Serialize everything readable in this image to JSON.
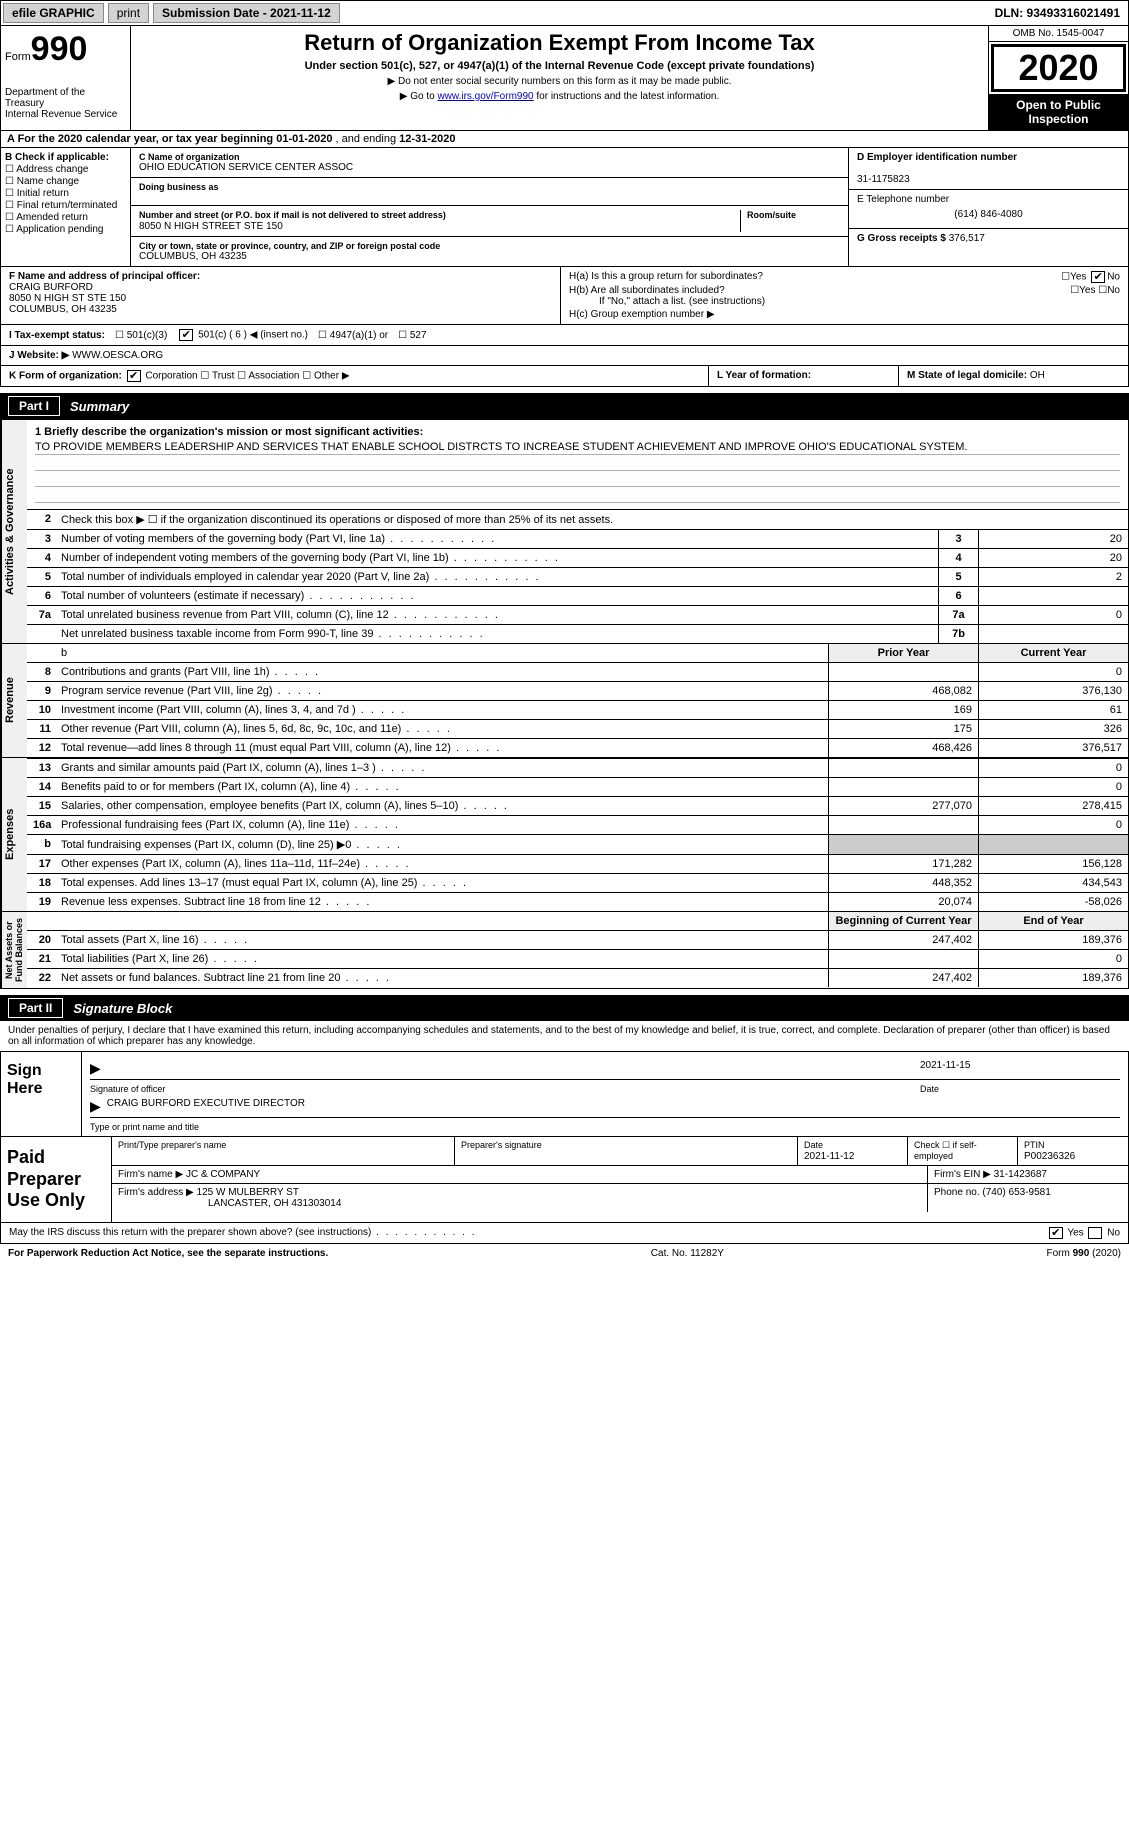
{
  "topbar": {
    "efile_label": "efile GRAPHIC",
    "print_btn": "print",
    "submission_label": "Submission Date - 2021-11-12",
    "dln": "DLN: 93493316021491"
  },
  "header": {
    "form_prefix": "Form",
    "form_number": "990",
    "dept": "Department of the Treasury\nInternal Revenue Service",
    "title": "Return of Organization Exempt From Income Tax",
    "subtitle": "Under section 501(c), 527, or 4947(a)(1) of the Internal Revenue Code (except private foundations)",
    "note1": "▶ Do not enter social security numbers on this form as it may be made public.",
    "note2_prefix": "▶ Go to ",
    "note2_link": "www.irs.gov/Form990",
    "note2_suffix": " for instructions and the latest information.",
    "omb": "OMB No. 1545-0047",
    "tax_year": "2020",
    "inspection": "Open to Public\nInspection"
  },
  "period": {
    "prefix": "A For the 2020 calendar year, or tax year beginning ",
    "begin": "01-01-2020",
    "mid": " , and ending ",
    "end": "12-31-2020"
  },
  "section_b": {
    "title": "B Check if applicable:",
    "opts": [
      "Address change",
      "Name change",
      "Initial return",
      "Final return/terminated",
      "Amended return",
      "Application pending"
    ]
  },
  "section_c": {
    "name_label": "C Name of organization",
    "name": "OHIO EDUCATION SERVICE CENTER ASSOC",
    "dba_label": "Doing business as",
    "dba": "",
    "street_label": "Number and street (or P.O. box if mail is not delivered to street address)",
    "room_label": "Room/suite",
    "street": "8050 N HIGH STREET STE 150",
    "city_label": "City or town, state or province, country, and ZIP or foreign postal code",
    "city": "COLUMBUS, OH  43235"
  },
  "section_d": {
    "label": "D Employer identification number",
    "value": "31-1175823"
  },
  "section_e": {
    "label": "E Telephone number",
    "value": "(614) 846-4080"
  },
  "section_g": {
    "label": "G Gross receipts $",
    "value": "376,517"
  },
  "section_f": {
    "label": "F Name and address of principal officer:",
    "name": "CRAIG BURFORD",
    "addr1": "8050 N HIGH ST STE 150",
    "addr2": "COLUMBUS, OH  43235"
  },
  "section_h": {
    "ha_label": "H(a)  Is this a group return for subordinates?",
    "hb_label": "H(b)  Are all subordinates included?",
    "hb_note": "If \"No,\" attach a list. (see instructions)",
    "hc_label": "H(c)  Group exemption number ▶",
    "ha_no_checked": true
  },
  "status": {
    "label": "I   Tax-exempt status:",
    "c6_insert": "501(c) ( 6 ) ◀ (insert no.)",
    "c3": "501(c)(3)",
    "a4947": "4947(a)(1) or",
    "s527": "527"
  },
  "website": {
    "label": "J   Website: ▶",
    "value": "WWW.OESCA.ORG"
  },
  "korg": {
    "label": "K Form of organization:",
    "opts": [
      "Corporation",
      "Trust",
      "Association",
      "Other ▶"
    ],
    "year_label": "L Year of formation:",
    "year": "",
    "state_label": "M State of legal domicile:",
    "state": "OH"
  },
  "part1": {
    "part": "Part I",
    "title": "Summary",
    "mission_label": "1  Briefly describe the organization's mission or most significant activities:",
    "mission": "TO PROVIDE MEMBERS LEADERSHIP AND SERVICES THAT ENABLE SCHOOL DISTRCTS TO INCREASE STUDENT ACHIEVEMENT AND IMPROVE OHIO'S EDUCATIONAL SYSTEM.",
    "line2": "Check this box ▶ ☐  if the organization discontinued its operations or disposed of more than 25% of its net assets.",
    "governance_lines": [
      {
        "num": "3",
        "label": "Number of voting members of the governing body (Part VI, line 1a)",
        "cell": "3",
        "val": "20"
      },
      {
        "num": "4",
        "label": "Number of independent voting members of the governing body (Part VI, line 1b)",
        "cell": "4",
        "val": "20"
      },
      {
        "num": "5",
        "label": "Total number of individuals employed in calendar year 2020 (Part V, line 2a)",
        "cell": "5",
        "val": "2"
      },
      {
        "num": "6",
        "label": "Total number of volunteers (estimate if necessary)",
        "cell": "6",
        "val": ""
      },
      {
        "num": "7a",
        "label": "Total unrelated business revenue from Part VIII, column (C), line 12",
        "cell": "7a",
        "val": "0"
      },
      {
        "num": "",
        "label": "Net unrelated business taxable income from Form 990-T, line 39",
        "cell": "7b",
        "val": ""
      }
    ],
    "col_headers": {
      "prior": "Prior Year",
      "current": "Current Year"
    },
    "revenue_lines": [
      {
        "num": "8",
        "label": "Contributions and grants (Part VIII, line 1h)",
        "prior": "",
        "current": "0"
      },
      {
        "num": "9",
        "label": "Program service revenue (Part VIII, line 2g)",
        "prior": "468,082",
        "current": "376,130"
      },
      {
        "num": "10",
        "label": "Investment income (Part VIII, column (A), lines 3, 4, and 7d )",
        "prior": "169",
        "current": "61"
      },
      {
        "num": "11",
        "label": "Other revenue (Part VIII, column (A), lines 5, 6d, 8c, 9c, 10c, and 11e)",
        "prior": "175",
        "current": "326"
      },
      {
        "num": "12",
        "label": "Total revenue—add lines 8 through 11 (must equal Part VIII, column (A), line 12)",
        "prior": "468,426",
        "current": "376,517"
      }
    ],
    "expense_lines": [
      {
        "num": "13",
        "label": "Grants and similar amounts paid (Part IX, column (A), lines 1–3 )",
        "prior": "",
        "current": "0"
      },
      {
        "num": "14",
        "label": "Benefits paid to or for members (Part IX, column (A), line 4)",
        "prior": "",
        "current": "0"
      },
      {
        "num": "15",
        "label": "Salaries, other compensation, employee benefits (Part IX, column (A), lines 5–10)",
        "prior": "277,070",
        "current": "278,415"
      },
      {
        "num": "16a",
        "label": "Professional fundraising fees (Part IX, column (A), line 11e)",
        "prior": "",
        "current": "0"
      },
      {
        "num": "b",
        "label": "Total fundraising expenses (Part IX, column (D), line 25) ▶0",
        "prior": "SHADED",
        "current": "SHADED"
      },
      {
        "num": "17",
        "label": "Other expenses (Part IX, column (A), lines 11a–11d, 11f–24e)",
        "prior": "171,282",
        "current": "156,128"
      },
      {
        "num": "18",
        "label": "Total expenses. Add lines 13–17 (must equal Part IX, column (A), line 25)",
        "prior": "448,352",
        "current": "434,543"
      },
      {
        "num": "19",
        "label": "Revenue less expenses. Subtract line 18 from line 12",
        "prior": "20,074",
        "current": "-58,026"
      }
    ],
    "net_headers": {
      "begin": "Beginning of Current Year",
      "end": "End of Year"
    },
    "net_lines": [
      {
        "num": "20",
        "label": "Total assets (Part X, line 16)",
        "prior": "247,402",
        "current": "189,376"
      },
      {
        "num": "21",
        "label": "Total liabilities (Part X, line 26)",
        "prior": "",
        "current": "0"
      },
      {
        "num": "22",
        "label": "Net assets or fund balances. Subtract line 21 from line 20",
        "prior": "247,402",
        "current": "189,376"
      }
    ],
    "vtabs": {
      "gov": "Activities & Governance",
      "rev": "Revenue",
      "exp": "Expenses",
      "net": "Net Assets or\nFund Balances"
    }
  },
  "part2": {
    "part": "Part II",
    "title": "Signature Block",
    "declaration": "Under penalties of perjury, I declare that I have examined this return, including accompanying schedules and statements, and to the best of my knowledge and belief, it is true, correct, and complete. Declaration of preparer (other than officer) is based on all information of which preparer has any knowledge.",
    "sign_here": "Sign Here",
    "sig_officer_label": "Signature of officer",
    "sig_date": "2021-11-15",
    "sig_date_label": "Date",
    "officer_name": "CRAIG BURFORD  EXECUTIVE DIRECTOR",
    "officer_name_label": "Type or print name and title",
    "paid_label": "Paid Preparer Use Only",
    "prep_name_label": "Print/Type preparer's name",
    "prep_sig_label": "Preparer's signature",
    "prep_date_label": "Date",
    "prep_date": "2021-11-12",
    "prep_self_label": "Check ☐ if self-employed",
    "ptin_label": "PTIN",
    "ptin": "P00236326",
    "firm_name_label": "Firm's name    ▶",
    "firm_name": "JC & COMPANY",
    "firm_ein_label": "Firm's EIN ▶",
    "firm_ein": "31-1423687",
    "firm_addr_label": "Firm's address ▶",
    "firm_addr": "125 W MULBERRY ST",
    "firm_city": "LANCASTER, OH  431303014",
    "firm_phone_label": "Phone no.",
    "firm_phone": "(740) 653-9581",
    "discuss": "May the IRS discuss this return with the preparer shown above? (see instructions)",
    "discuss_yes_checked": true
  },
  "footer": {
    "paperwork": "For Paperwork Reduction Act Notice, see the separate instructions.",
    "catno": "Cat. No. 11282Y",
    "formref": "Form 990 (2020)"
  },
  "colors": {
    "header_black": "#000000",
    "shade_gray": "#cccccc",
    "light_gray": "#eeeeee",
    "btn_gray": "#d3d3d3",
    "link": "#0000cc",
    "line_blue": "#aaaacc"
  }
}
